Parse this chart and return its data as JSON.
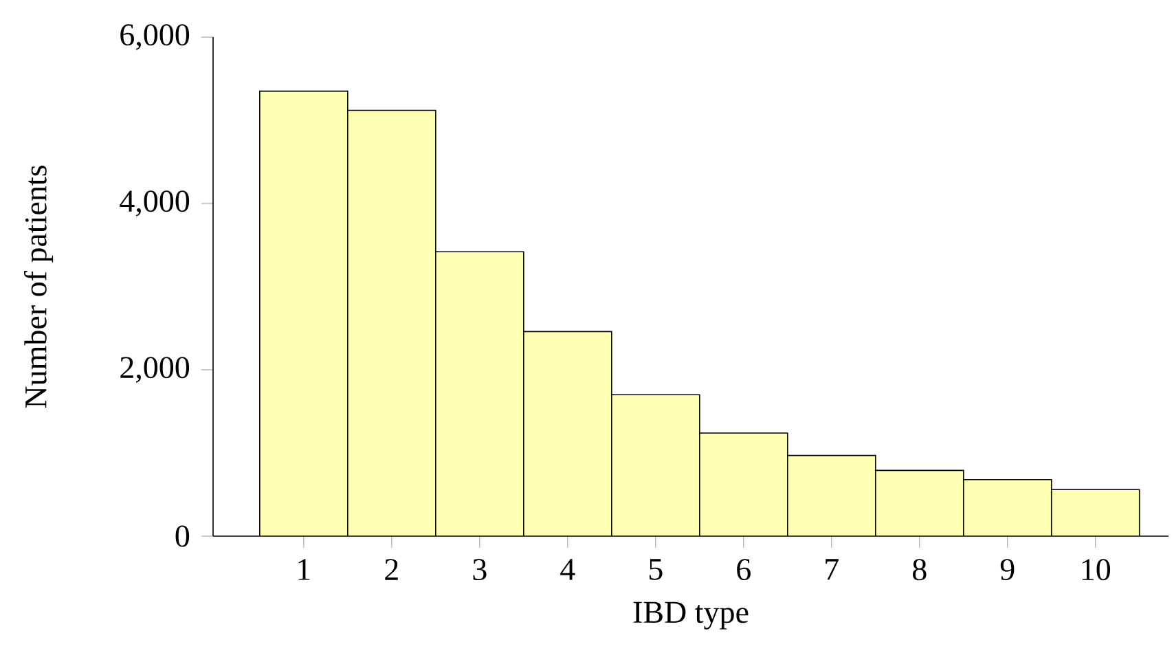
{
  "chart_data": {
    "type": "bar",
    "xlabel": "IBD type",
    "ylabel": "Number of patients",
    "categories": [
      "1",
      "2",
      "3",
      "4",
      "5",
      "6",
      "7",
      "8",
      "9",
      "10"
    ],
    "values": [
      5350,
      5120,
      3420,
      2460,
      1700,
      1240,
      970,
      790,
      680,
      560
    ],
    "color": "#ffffb3",
    "ylim": [
      0,
      6000
    ],
    "yticks": [
      {
        "value": 0,
        "label": "0"
      },
      {
        "value": 2000,
        "label": "2,000"
      },
      {
        "value": 4000,
        "label": "4,000"
      },
      {
        "value": 6000,
        "label": "6,000"
      }
    ]
  }
}
